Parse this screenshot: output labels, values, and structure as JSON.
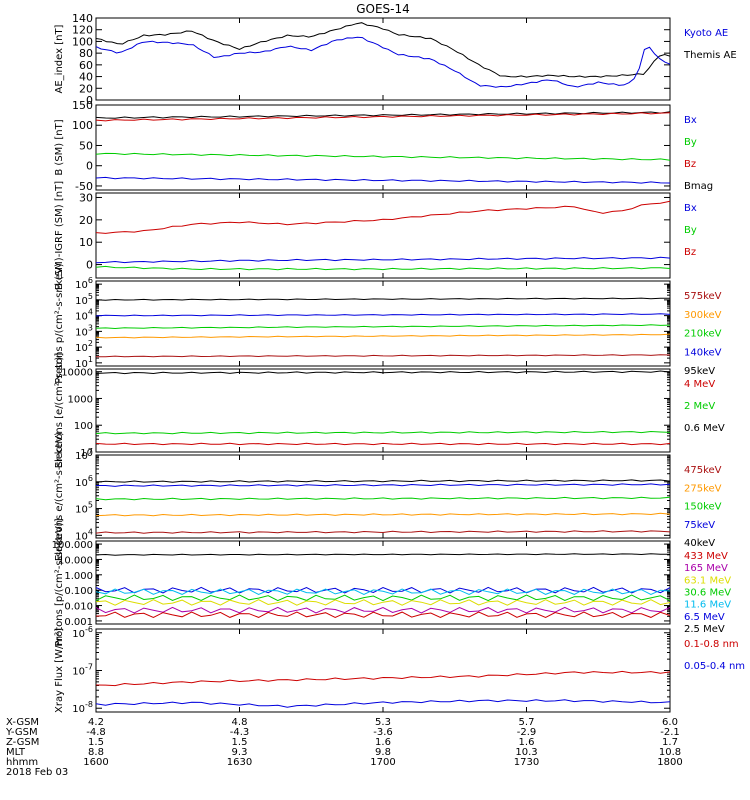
{
  "title": "GOES-14",
  "date_label": "2018 Feb 03",
  "colors": {
    "blue": "#0000dd",
    "green": "#00cc00",
    "red": "#cc0000",
    "black": "#000000",
    "orange": "#ff9900",
    "yellow": "#dddd00",
    "cyan": "#00bbee",
    "purple": "#aa00aa",
    "dkred": "#aa1111"
  },
  "time_axis": {
    "row_labels": [
      "X-GSM",
      "Y-GSM",
      "Z-GSM",
      "MLT",
      "hhmm"
    ],
    "columns": [
      [
        "4.2",
        "-4.8",
        "1.5",
        "8.8",
        "1600"
      ],
      [
        "4.8",
        "-4.3",
        "1.5",
        "9.3",
        "1630"
      ],
      [
        "5.3",
        "-3.6",
        "1.6",
        "9.8",
        "1700"
      ],
      [
        "5.7",
        "-2.9",
        "1.6",
        "10.3",
        "1730"
      ],
      [
        "6.0",
        "-2.1",
        "1.7",
        "10.8",
        "1800"
      ]
    ],
    "minutes": [
      0,
      30,
      60,
      90,
      120
    ]
  },
  "chart_data": [
    {
      "type": "line",
      "ylabel": "AE_index [nT]",
      "yticks": [
        "140",
        "120",
        "100",
        "80",
        "60",
        "40",
        "20",
        "0"
      ],
      "ylim": [
        0,
        140
      ],
      "legend": [
        "Kyoto AE",
        "Themis AE"
      ],
      "series": [
        {
          "name": "Themis AE",
          "color": "black",
          "t": [
            0,
            5,
            10,
            15,
            20,
            25,
            30,
            35,
            40,
            45,
            50,
            55,
            60,
            63,
            70,
            75,
            80,
            85,
            90,
            95,
            100,
            105,
            110,
            115,
            116,
            118,
            120
          ],
          "values": [
            105,
            95,
            110,
            112,
            118,
            100,
            87,
            100,
            110,
            108,
            120,
            132,
            122,
            112,
            105,
            85,
            60,
            40,
            40,
            42,
            40,
            40,
            42,
            45,
            60,
            78,
            75
          ]
        },
        {
          "name": "Kyoto AE",
          "color": "blue",
          "t": [
            0,
            5,
            10,
            15,
            20,
            25,
            30,
            35,
            40,
            45,
            50,
            55,
            60,
            63,
            70,
            75,
            80,
            85,
            90,
            95,
            100,
            105,
            110,
            112,
            114,
            115,
            117,
            120
          ],
          "values": [
            90,
            80,
            100,
            98,
            95,
            72,
            80,
            82,
            92,
            85,
            102,
            108,
            90,
            78,
            70,
            50,
            25,
            22,
            28,
            35,
            22,
            30,
            25,
            30,
            60,
            100,
            75,
            60
          ]
        }
      ]
    },
    {
      "type": "line",
      "ylabel": "B (SM) [nT]",
      "yticks": [
        "150",
        "100",
        "50",
        "0",
        "-50"
      ],
      "ylim": [
        -60,
        150
      ],
      "legend": [
        "Bx",
        "By",
        "Bz",
        "Bmag"
      ],
      "series": [
        {
          "name": "Bmag",
          "color": "black",
          "t": [
            0,
            120
          ],
          "values": [
            118,
            132
          ]
        },
        {
          "name": "Bz",
          "color": "red",
          "t": [
            0,
            120
          ],
          "values": [
            112,
            130
          ]
        },
        {
          "name": "By",
          "color": "green",
          "t": [
            0,
            120
          ],
          "values": [
            30,
            15
          ]
        },
        {
          "name": "Bx",
          "color": "blue",
          "t": [
            0,
            120
          ],
          "values": [
            -30,
            -42
          ]
        }
      ]
    },
    {
      "type": "line",
      "ylabel": "B (SM)-IGRF (SM) [nT]",
      "yticks": [
        "30",
        "20",
        "10",
        "0"
      ],
      "ylim": [
        -6,
        32
      ],
      "legend": [
        "Bx",
        "By",
        "Bz"
      ],
      "series": [
        {
          "name": "Bz",
          "color": "red",
          "t": [
            0,
            10,
            20,
            30,
            40,
            50,
            60,
            70,
            80,
            90,
            100,
            105,
            110,
            115,
            120
          ],
          "values": [
            14,
            15,
            18,
            19,
            18,
            19,
            20,
            22,
            24,
            25,
            26,
            23,
            24,
            27,
            28
          ]
        },
        {
          "name": "Bx",
          "color": "blue",
          "t": [
            0,
            20,
            40,
            60,
            80,
            100,
            120
          ],
          "values": [
            1,
            1.5,
            2,
            2.2,
            2.5,
            2.8,
            3
          ]
        },
        {
          "name": "By",
          "color": "green",
          "t": [
            0,
            20,
            40,
            60,
            80,
            100,
            120
          ],
          "values": [
            -1,
            -2,
            -2,
            -2,
            -1.8,
            -1.7,
            -1.5
          ]
        }
      ]
    },
    {
      "type": "line",
      "scale": "log",
      "ylabel": "Protons p/(cm²-s-sr-keV)",
      "ylim_exp": [
        0.8,
        6.2
      ],
      "tick_exps": [
        1,
        2,
        3,
        4,
        5,
        6
      ],
      "legend": [
        "575keV",
        "300keV",
        "210keV",
        "140keV",
        "95keV"
      ],
      "series": [
        {
          "name": "95keV",
          "color": "black",
          "t": [
            0,
            120
          ],
          "values": [
            5.0,
            5.1
          ]
        },
        {
          "name": "140keV",
          "color": "blue",
          "t": [
            0,
            120
          ],
          "values": [
            4.0,
            4.1
          ]
        },
        {
          "name": "210keV",
          "color": "green",
          "t": [
            0,
            120
          ],
          "values": [
            3.2,
            3.4
          ]
        },
        {
          "name": "300keV",
          "color": "orange",
          "t": [
            0,
            120
          ],
          "values": [
            2.6,
            2.8
          ]
        },
        {
          "name": "575keV",
          "color": "dkred",
          "t": [
            0,
            120
          ],
          "values": [
            1.4,
            1.5
          ]
        }
      ]
    },
    {
      "type": "line",
      "scale": "log",
      "ylabel": "Electrons [e/(cm²-s-sr)]",
      "ylim_exp": [
        1,
        4.1
      ],
      "tick_labels": [
        "10",
        "100",
        "1000",
        "10000"
      ],
      "tick_exps": [
        1,
        2,
        3,
        4
      ],
      "legend": [
        "4 MeV",
        "2 MeV",
        "0.6 MeV"
      ],
      "series": [
        {
          "name": "0.6 MeV",
          "color": "black",
          "t": [
            0,
            120
          ],
          "values": [
            3.95,
            4.0
          ]
        },
        {
          "name": "2 MeV",
          "color": "green",
          "t": [
            0,
            120
          ],
          "values": [
            1.7,
            1.75
          ]
        },
        {
          "name": "4 MeV",
          "color": "red",
          "t": [
            0,
            120
          ],
          "values": [
            1.3,
            1.3
          ]
        }
      ]
    },
    {
      "type": "line",
      "scale": "log",
      "ylabel": "Electrons e/(cm²-s-sr-keV)",
      "ylim_exp": [
        3.9,
        7
      ],
      "tick_exps": [
        4,
        5,
        6,
        7
      ],
      "legend": [
        "475keV",
        "275keV",
        "150keV",
        "75keV",
        "40keV"
      ],
      "series": [
        {
          "name": "40keV",
          "color": "black",
          "t": [
            0,
            120
          ],
          "values": [
            6.0,
            6.05
          ]
        },
        {
          "name": "75keV",
          "color": "blue",
          "t": [
            0,
            120
          ],
          "values": [
            5.85,
            5.9
          ]
        },
        {
          "name": "150keV",
          "color": "green",
          "t": [
            0,
            120
          ],
          "values": [
            5.35,
            5.4
          ]
        },
        {
          "name": "275keV",
          "color": "orange",
          "t": [
            0,
            120
          ],
          "values": [
            4.75,
            4.8
          ]
        },
        {
          "name": "475keV",
          "color": "dkred",
          "t": [
            0,
            120
          ],
          "values": [
            4.1,
            4.15
          ]
        }
      ]
    },
    {
      "type": "line",
      "scale": "log",
      "ylabel": "Protons [p/(cm²-s-sr-keV)]",
      "ylim_exp": [
        -3.2,
        2.2
      ],
      "tick_labels": [
        "100.000",
        "10.000",
        "1.000",
        "0.100",
        "0.010",
        "0.001"
      ],
      "tick_exps": [
        2,
        1,
        0,
        -1,
        -2,
        -3
      ],
      "legend": [
        "433 MeV",
        "165 MeV",
        "63.1 MeV",
        "30.6 MeV",
        "11.6 MeV",
        "6.5 MeV",
        "2.5 MeV"
      ],
      "series": [
        {
          "name": "2.5 MeV",
          "color": "black",
          "t": [
            0,
            120
          ],
          "values": [
            1.3,
            1.35
          ]
        },
        {
          "name": "6.5 MeV",
          "color": "blue",
          "t": [
            0,
            120
          ],
          "values": [
            -1.0,
            -1.0
          ]
        },
        {
          "name": "11.6 MeV",
          "color": "cyan",
          "t": [
            0,
            120
          ],
          "values": [
            -1.1,
            -1.1
          ]
        },
        {
          "name": "30.6 MeV",
          "color": "green",
          "t": [
            0,
            120
          ],
          "values": [
            -1.5,
            -1.5
          ]
        },
        {
          "name": "63.1 MeV",
          "color": "yellow",
          "t": [
            0,
            120
          ],
          "values": [
            -1.8,
            -1.8
          ]
        },
        {
          "name": "165 MeV",
          "color": "purple",
          "t": [
            0,
            120
          ],
          "values": [
            -2.3,
            -2.3
          ]
        },
        {
          "name": "433 MeV",
          "color": "red",
          "t": [
            0,
            120
          ],
          "values": [
            -2.6,
            -2.6
          ]
        }
      ]
    },
    {
      "type": "line",
      "scale": "log",
      "ylabel": "Xray Flux [W/m²]",
      "ylim_exp": [
        -8.1,
        -5.9
      ],
      "tick_exps": [
        -6,
        -7,
        -8
      ],
      "legend": [
        "0.1-0.8 nm",
        "0.05-0.4 nm"
      ],
      "series": [
        {
          "name": "0.1-0.8 nm",
          "color": "red",
          "t": [
            0,
            20,
            40,
            60,
            80,
            100,
            120
          ],
          "values": [
            -7.4,
            -7.3,
            -7.25,
            -7.2,
            -7.15,
            -7.05,
            -7.05
          ]
        },
        {
          "name": "0.05-0.4 nm",
          "color": "blue",
          "t": [
            0,
            20,
            40,
            60,
            80,
            100,
            120
          ],
          "values": [
            -7.9,
            -7.85,
            -7.95,
            -7.85,
            -7.8,
            -7.8,
            -7.85
          ]
        }
      ]
    }
  ]
}
